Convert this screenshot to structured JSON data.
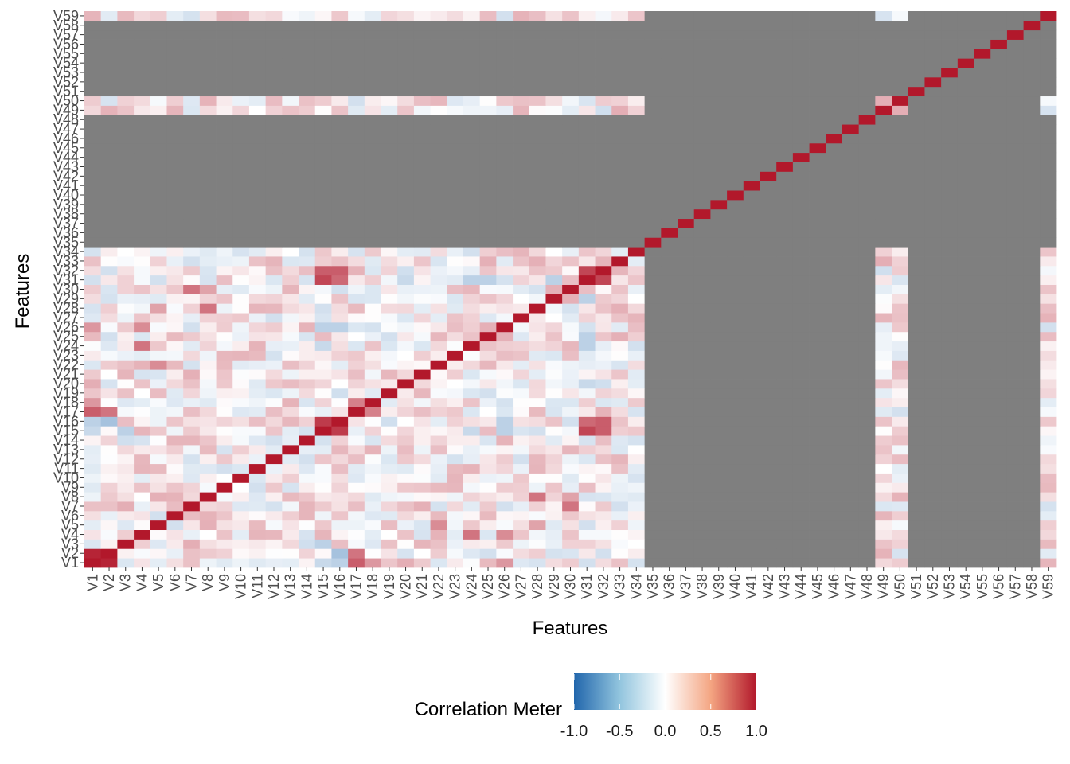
{
  "chart_data": {
    "type": "heatmap",
    "title": "",
    "xlabel": "Features",
    "ylabel": "Features",
    "variables": [
      "V1",
      "V2",
      "V3",
      "V4",
      "V5",
      "V6",
      "V7",
      "V8",
      "V9",
      "V10",
      "V11",
      "V12",
      "V13",
      "V14",
      "V15",
      "V16",
      "V17",
      "V18",
      "V19",
      "V20",
      "V21",
      "V22",
      "V23",
      "V24",
      "V25",
      "V26",
      "V27",
      "V28",
      "V29",
      "V30",
      "V31",
      "V32",
      "V33",
      "V34",
      "V35",
      "V36",
      "V37",
      "V38",
      "V39",
      "V40",
      "V41",
      "V42",
      "V43",
      "V44",
      "V45",
      "V46",
      "V47",
      "V48",
      "V49",
      "V50",
      "V51",
      "V52",
      "V53",
      "V54",
      "V55",
      "V56",
      "V57",
      "V58",
      "V59"
    ],
    "numeric_block": [
      "V1",
      "V2",
      "V3",
      "V4",
      "V5",
      "V6",
      "V7",
      "V8",
      "V9",
      "V10",
      "V11",
      "V12",
      "V13",
      "V14",
      "V15",
      "V16",
      "V17",
      "V18",
      "V19",
      "V20",
      "V21",
      "V22",
      "V23",
      "V24",
      "V25",
      "V26",
      "V27",
      "V28",
      "V29",
      "V30",
      "V31",
      "V32",
      "V33",
      "V34"
    ],
    "partial_variables": [
      "V49",
      "V50",
      "V59"
    ],
    "missing_variables": [
      "V35",
      "V36",
      "V37",
      "V38",
      "V39",
      "V40",
      "V41",
      "V42",
      "V43",
      "V44",
      "V45",
      "V46",
      "V47",
      "V48",
      "V51",
      "V52",
      "V53",
      "V54",
      "V55",
      "V56",
      "V57",
      "V58"
    ],
    "diagonal_value": 1.0,
    "missing_color": "#7f7f7f",
    "notable_correlations": [
      {
        "a": "V1",
        "b": "V2",
        "value": 0.95
      },
      {
        "a": "V1",
        "b": "V17",
        "value": 0.7
      },
      {
        "a": "V1",
        "b": "V18",
        "value": 0.45
      },
      {
        "a": "V1",
        "b": "V26",
        "value": 0.45
      },
      {
        "a": "V1",
        "b": "V20",
        "value": 0.35
      },
      {
        "a": "V1",
        "b": "V16",
        "value": -0.3
      },
      {
        "a": "V1",
        "b": "V15",
        "value": -0.25
      },
      {
        "a": "V2",
        "b": "V17",
        "value": 0.6
      },
      {
        "a": "V2",
        "b": "V16",
        "value": -0.4
      },
      {
        "a": "V3",
        "b": "V7",
        "value": 0.35
      },
      {
        "a": "V3",
        "b": "V15",
        "value": -0.3
      },
      {
        "a": "V3",
        "b": "V18",
        "value": -0.15
      },
      {
        "a": "V4",
        "b": "V24",
        "value": 0.6
      },
      {
        "a": "V4",
        "b": "V26",
        "value": 0.5
      },
      {
        "a": "V5",
        "b": "V22",
        "value": 0.5
      },
      {
        "a": "V5",
        "b": "V28",
        "value": 0.4
      },
      {
        "a": "V7",
        "b": "V30",
        "value": 0.6
      },
      {
        "a": "V8",
        "b": "V28",
        "value": 0.6
      },
      {
        "a": "V8",
        "b": "V30",
        "value": 0.4
      },
      {
        "a": "V8",
        "b": "V13",
        "value": 0.3
      },
      {
        "a": "V15",
        "b": "V16",
        "value": 0.85
      },
      {
        "a": "V15",
        "b": "V31",
        "value": 0.8
      },
      {
        "a": "V15",
        "b": "V32",
        "value": 0.7
      },
      {
        "a": "V16",
        "b": "V31",
        "value": 0.65
      },
      {
        "a": "V16",
        "b": "V32",
        "value": 0.7
      },
      {
        "a": "V17",
        "b": "V18",
        "value": 0.55
      },
      {
        "a": "V31",
        "b": "V32",
        "value": 0.8
      },
      {
        "a": "V24",
        "b": "V31",
        "value": -0.3
      },
      {
        "a": "V25",
        "b": "V31",
        "value": -0.3
      },
      {
        "a": "V20",
        "b": "V31",
        "value": -0.25
      },
      {
        "a": "V29",
        "b": "V31",
        "value": -0.3
      },
      {
        "a": "V5",
        "b": "V31",
        "value": -0.2
      },
      {
        "a": "V15",
        "b": "V26",
        "value": -0.3
      },
      {
        "a": "V15",
        "b": "V24",
        "value": -0.25
      },
      {
        "a": "V15",
        "b": "V28",
        "value": -0.2
      },
      {
        "a": "V16",
        "b": "V26",
        "value": -0.3
      },
      {
        "a": "V33",
        "b": "V49",
        "value": 0.35
      },
      {
        "a": "V34",
        "b": "V49",
        "value": 0.2
      },
      {
        "a": "V33",
        "b": "V50",
        "value": 0.2
      },
      {
        "a": "V49",
        "b": "V50",
        "value": 0.35
      }
    ],
    "legend": {
      "title": "Correlation Meter",
      "position": "bottom",
      "ticks": [
        "-1.0",
        "-0.5",
        "0.0",
        "0.5",
        "1.0"
      ],
      "domain": [
        -1.0,
        1.0
      ],
      "colors": {
        "low": "#2166ac",
        "mid": "#ffffff",
        "high": "#b2182b"
      }
    },
    "grid": false
  }
}
